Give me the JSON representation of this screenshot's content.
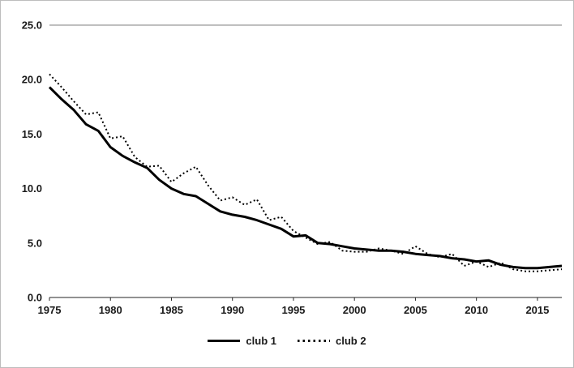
{
  "chart_data": {
    "type": "line",
    "title": "",
    "xlabel": "",
    "ylabel": "",
    "xlim": [
      1975,
      2017
    ],
    "ylim": [
      0,
      25
    ],
    "grid": false,
    "legend_position": "bottom",
    "y_ticks": [
      0,
      5,
      10,
      15,
      20,
      25
    ],
    "y_tick_labels": [
      "0.0",
      "5.0",
      "10.0",
      "15.0",
      "20.0",
      "25.0"
    ],
    "x_ticks": [
      1975,
      1980,
      1985,
      1990,
      1995,
      2000,
      2005,
      2010,
      2015
    ],
    "x": [
      1975,
      1976,
      1977,
      1978,
      1979,
      1980,
      1981,
      1982,
      1983,
      1984,
      1985,
      1986,
      1987,
      1988,
      1989,
      1990,
      1991,
      1992,
      1993,
      1994,
      1995,
      1996,
      1997,
      1998,
      1999,
      2000,
      2001,
      2002,
      2003,
      2004,
      2005,
      2006,
      2007,
      2008,
      2009,
      2010,
      2011,
      2012,
      2013,
      2014,
      2015,
      2016,
      2017
    ],
    "series": [
      {
        "name": "club 1",
        "style": "solid",
        "color": "#000000",
        "values": [
          19.3,
          18.2,
          17.2,
          15.9,
          15.3,
          13.8,
          13.0,
          12.4,
          11.9,
          10.8,
          10.0,
          9.5,
          9.3,
          8.6,
          7.9,
          7.6,
          7.4,
          7.1,
          6.7,
          6.3,
          5.6,
          5.7,
          5.0,
          4.9,
          4.7,
          4.5,
          4.4,
          4.3,
          4.3,
          4.2,
          4.0,
          3.9,
          3.8,
          3.6,
          3.5,
          3.3,
          3.4,
          3.0,
          2.8,
          2.7,
          2.7,
          2.8,
          2.9
        ]
      },
      {
        "name": "club 2",
        "style": "dotted",
        "color": "#000000",
        "values": [
          20.5,
          19.3,
          18.0,
          16.8,
          17.0,
          14.6,
          14.8,
          12.9,
          12.0,
          12.1,
          10.6,
          11.4,
          12.0,
          10.3,
          8.9,
          9.2,
          8.5,
          9.0,
          7.1,
          7.4,
          6.1,
          5.5,
          4.9,
          5.1,
          4.3,
          4.2,
          4.2,
          4.5,
          4.3,
          4.0,
          4.7,
          4.0,
          3.7,
          4.0,
          2.9,
          3.3,
          2.8,
          3.2,
          2.6,
          2.4,
          2.4,
          2.5,
          2.6
        ]
      }
    ]
  }
}
